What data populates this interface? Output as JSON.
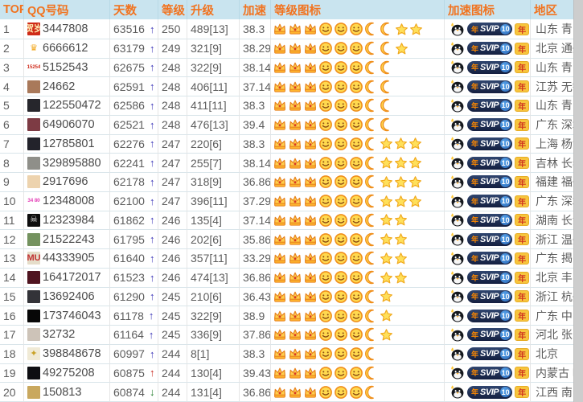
{
  "header": {
    "columns": [
      "TOP",
      "QQ号码",
      "天数",
      "等级",
      "升级",
      "加速",
      "等级图标",
      "加速图标",
      "地区"
    ]
  },
  "vip_badge": {
    "year_prefix": "年",
    "svip": "SVIP",
    "svip_level": "10",
    "year_tag": "年"
  },
  "colors": {
    "header_bg": "#c9e4ef",
    "header_text": "#f1731f",
    "trend_up_blue": "#3d37b8",
    "trend_up_red": "#c8281e",
    "trend_down_green": "#1e7a28",
    "badge_navy": "#1c2c55",
    "badge_yellow": "#f7c53d",
    "icon_orange": "#ef8f1c"
  },
  "icon_names": [
    "crown-icon",
    "sun-icon",
    "moon-icon",
    "star-icon"
  ],
  "rows": [
    {
      "top": "1",
      "qq": "3447808",
      "avatar": {
        "bg": "#cf2b18",
        "text": "贺岁",
        "fg": "#ffe9b0"
      },
      "days": "63516",
      "trend": "up",
      "trend_color": "#3d37b8",
      "level": "250",
      "upgrade": "489[13]",
      "speed": "38.3",
      "icons": {
        "crown": 3,
        "sun": 3,
        "moon": 2,
        "star": 2
      },
      "region": "山东 青岛"
    },
    {
      "top": "2",
      "qq": "6666612",
      "avatar": {
        "bg": "#ffffff",
        "text": "♛",
        "fg": "#f2a71b"
      },
      "days": "63179",
      "trend": "up",
      "trend_color": "#3d37b8",
      "level": "249",
      "upgrade": "321[9]",
      "speed": "38.29",
      "icons": {
        "crown": 3,
        "sun": 3,
        "moon": 2,
        "star": 1
      },
      "region": "北京 通州"
    },
    {
      "top": "3",
      "qq": "5152543",
      "avatar": {
        "bg": "#ffffff",
        "text": "5152543",
        "fg": "#d03020"
      },
      "days": "62675",
      "trend": "up",
      "trend_color": "#3d37b8",
      "level": "248",
      "upgrade": "322[9]",
      "speed": "38.14",
      "icons": {
        "crown": 3,
        "sun": 3,
        "moon": 2,
        "star": 0
      },
      "region": "山东 青岛"
    },
    {
      "top": "4",
      "qq": "24662",
      "avatar": {
        "bg": "#a9795a",
        "text": "",
        "fg": "#ffffff"
      },
      "days": "62591",
      "trend": "up",
      "trend_color": "#3d37b8",
      "level": "248",
      "upgrade": "406[11]",
      "speed": "37.14",
      "icons": {
        "crown": 3,
        "sun": 3,
        "moon": 2,
        "star": 0
      },
      "region": "江苏 无锡"
    },
    {
      "top": "5",
      "qq": "122550472",
      "avatar": {
        "bg": "#26262c",
        "text": "",
        "fg": "#ffffff"
      },
      "days": "62586",
      "trend": "up",
      "trend_color": "#3d37b8",
      "level": "248",
      "upgrade": "411[11]",
      "speed": "38.3",
      "icons": {
        "crown": 3,
        "sun": 3,
        "moon": 2,
        "star": 0
      },
      "region": "山东 青岛"
    },
    {
      "top": "6",
      "qq": "64906070",
      "avatar": {
        "bg": "#7d3b44",
        "text": "",
        "fg": "#ffffff"
      },
      "days": "62521",
      "trend": "up",
      "trend_color": "#3d37b8",
      "level": "248",
      "upgrade": "476[13]",
      "speed": "39.4",
      "icons": {
        "crown": 3,
        "sun": 3,
        "moon": 2,
        "star": 0
      },
      "region": "广东 深圳"
    },
    {
      "top": "7",
      "qq": "12785801",
      "avatar": {
        "bg": "#23232b",
        "text": "",
        "fg": "#ffffff"
      },
      "days": "62276",
      "trend": "up",
      "trend_color": "#3d37b8",
      "level": "247",
      "upgrade": "220[6]",
      "speed": "38.3",
      "icons": {
        "crown": 3,
        "sun": 3,
        "moon": 1,
        "star": 3
      },
      "region": "上海 杨浦"
    },
    {
      "top": "8",
      "qq": "329895880",
      "avatar": {
        "bg": "#8f8f89",
        "text": "",
        "fg": "#ffffff"
      },
      "days": "62241",
      "trend": "up",
      "trend_color": "#3d37b8",
      "level": "247",
      "upgrade": "255[7]",
      "speed": "38.14",
      "icons": {
        "crown": 3,
        "sun": 3,
        "moon": 1,
        "star": 3
      },
      "region": "吉林 长春"
    },
    {
      "top": "9",
      "qq": "2917696",
      "avatar": {
        "bg": "#edd3ae",
        "text": "",
        "fg": "#5a3a1a"
      },
      "days": "62178",
      "trend": "up",
      "trend_color": "#3d37b8",
      "level": "247",
      "upgrade": "318[9]",
      "speed": "36.86",
      "icons": {
        "crown": 3,
        "sun": 3,
        "moon": 1,
        "star": 3
      },
      "region": "福建 福州"
    },
    {
      "top": "10",
      "qq": "12348008",
      "avatar": {
        "bg": "#ffffff",
        "text": "1234 8008",
        "fg": "#e33bb5"
      },
      "days": "62100",
      "trend": "up",
      "trend_color": "#3d37b8",
      "level": "247",
      "upgrade": "396[11]",
      "speed": "37.29",
      "icons": {
        "crown": 3,
        "sun": 3,
        "moon": 1,
        "star": 3
      },
      "region": "广东 深圳"
    },
    {
      "top": "11",
      "qq": "12323984",
      "avatar": {
        "bg": "#0d0d0d",
        "text": "☠",
        "fg": "#e8e8e8"
      },
      "days": "61862",
      "trend": "up",
      "trend_color": "#3d37b8",
      "level": "246",
      "upgrade": "135[4]",
      "speed": "37.14",
      "icons": {
        "crown": 3,
        "sun": 3,
        "moon": 1,
        "star": 2
      },
      "region": "湖南 长沙"
    },
    {
      "top": "12",
      "qq": "21522243",
      "avatar": {
        "bg": "#74925f",
        "text": "",
        "fg": "#ffffff"
      },
      "days": "61795",
      "trend": "up",
      "trend_color": "#3d37b8",
      "level": "246",
      "upgrade": "202[6]",
      "speed": "35.86",
      "icons": {
        "crown": 3,
        "sun": 3,
        "moon": 1,
        "star": 2
      },
      "region": "浙江 温州"
    },
    {
      "top": "13",
      "qq": "44333905",
      "avatar": {
        "bg": "#e5ddc9",
        "text": "MU",
        "fg": "#c03030"
      },
      "days": "61640",
      "trend": "up",
      "trend_color": "#3d37b8",
      "level": "246",
      "upgrade": "357[11]",
      "speed": "33.29",
      "icons": {
        "crown": 3,
        "sun": 3,
        "moon": 1,
        "star": 2
      },
      "region": "广东 揭阳"
    },
    {
      "top": "14",
      "qq": "164172017",
      "avatar": {
        "bg": "#4f1420",
        "text": "",
        "fg": "#ffffff"
      },
      "days": "61523",
      "trend": "up",
      "trend_color": "#3d37b8",
      "level": "246",
      "upgrade": "474[13]",
      "speed": "36.86",
      "icons": {
        "crown": 3,
        "sun": 3,
        "moon": 1,
        "star": 2
      },
      "region": "北京 丰台"
    },
    {
      "top": "15",
      "qq": "13692406",
      "avatar": {
        "bg": "#333338",
        "text": "",
        "fg": "#ffffff"
      },
      "days": "61290",
      "trend": "up",
      "trend_color": "#3d37b8",
      "level": "245",
      "upgrade": "210[6]",
      "speed": "36.43",
      "icons": {
        "crown": 3,
        "sun": 3,
        "moon": 1,
        "star": 1
      },
      "region": "浙江 杭州"
    },
    {
      "top": "16",
      "qq": "173746043",
      "avatar": {
        "bg": "#070707",
        "text": "",
        "fg": "#ffffff"
      },
      "days": "61178",
      "trend": "up",
      "trend_color": "#3d37b8",
      "level": "245",
      "upgrade": "322[9]",
      "speed": "38.9",
      "icons": {
        "crown": 3,
        "sun": 3,
        "moon": 1,
        "star": 1
      },
      "region": "广东 中山"
    },
    {
      "top": "17",
      "qq": "32732",
      "avatar": {
        "bg": "#cdc3b8",
        "text": "",
        "fg": "#8a2a2a"
      },
      "days": "61164",
      "trend": "up",
      "trend_color": "#3d37b8",
      "level": "245",
      "upgrade": "336[9]",
      "speed": "37.86",
      "icons": {
        "crown": 3,
        "sun": 3,
        "moon": 1,
        "star": 1
      },
      "region": "河北 张家口"
    },
    {
      "top": "18",
      "qq": "398848678",
      "avatar": {
        "bg": "#f0ead6",
        "text": "✦",
        "fg": "#c9a227"
      },
      "days": "60997",
      "trend": "up",
      "trend_color": "#3d37b8",
      "level": "244",
      "upgrade": "8[1]",
      "speed": "38.3",
      "icons": {
        "crown": 3,
        "sun": 3,
        "moon": 1,
        "star": 0
      },
      "region": "北京"
    },
    {
      "top": "19",
      "qq": "49275208",
      "avatar": {
        "bg": "#0e0e12",
        "text": "",
        "fg": "#ffffff"
      },
      "days": "60875",
      "trend": "up",
      "trend_color": "#c8281e",
      "level": "244",
      "upgrade": "130[4]",
      "speed": "39.43",
      "icons": {
        "crown": 3,
        "sun": 3,
        "moon": 1,
        "star": 0
      },
      "region": "内蒙古 呼和浩特"
    },
    {
      "top": "20",
      "qq": "150813",
      "avatar": {
        "bg": "#c9a85e",
        "text": "",
        "fg": "#6a4a1a"
      },
      "days": "60874",
      "trend": "down",
      "trend_color": "#1e7a28",
      "level": "244",
      "upgrade": "131[4]",
      "speed": "36.86",
      "icons": {
        "crown": 3,
        "sun": 3,
        "moon": 1,
        "star": 0
      },
      "region": "江西 南昌"
    }
  ]
}
